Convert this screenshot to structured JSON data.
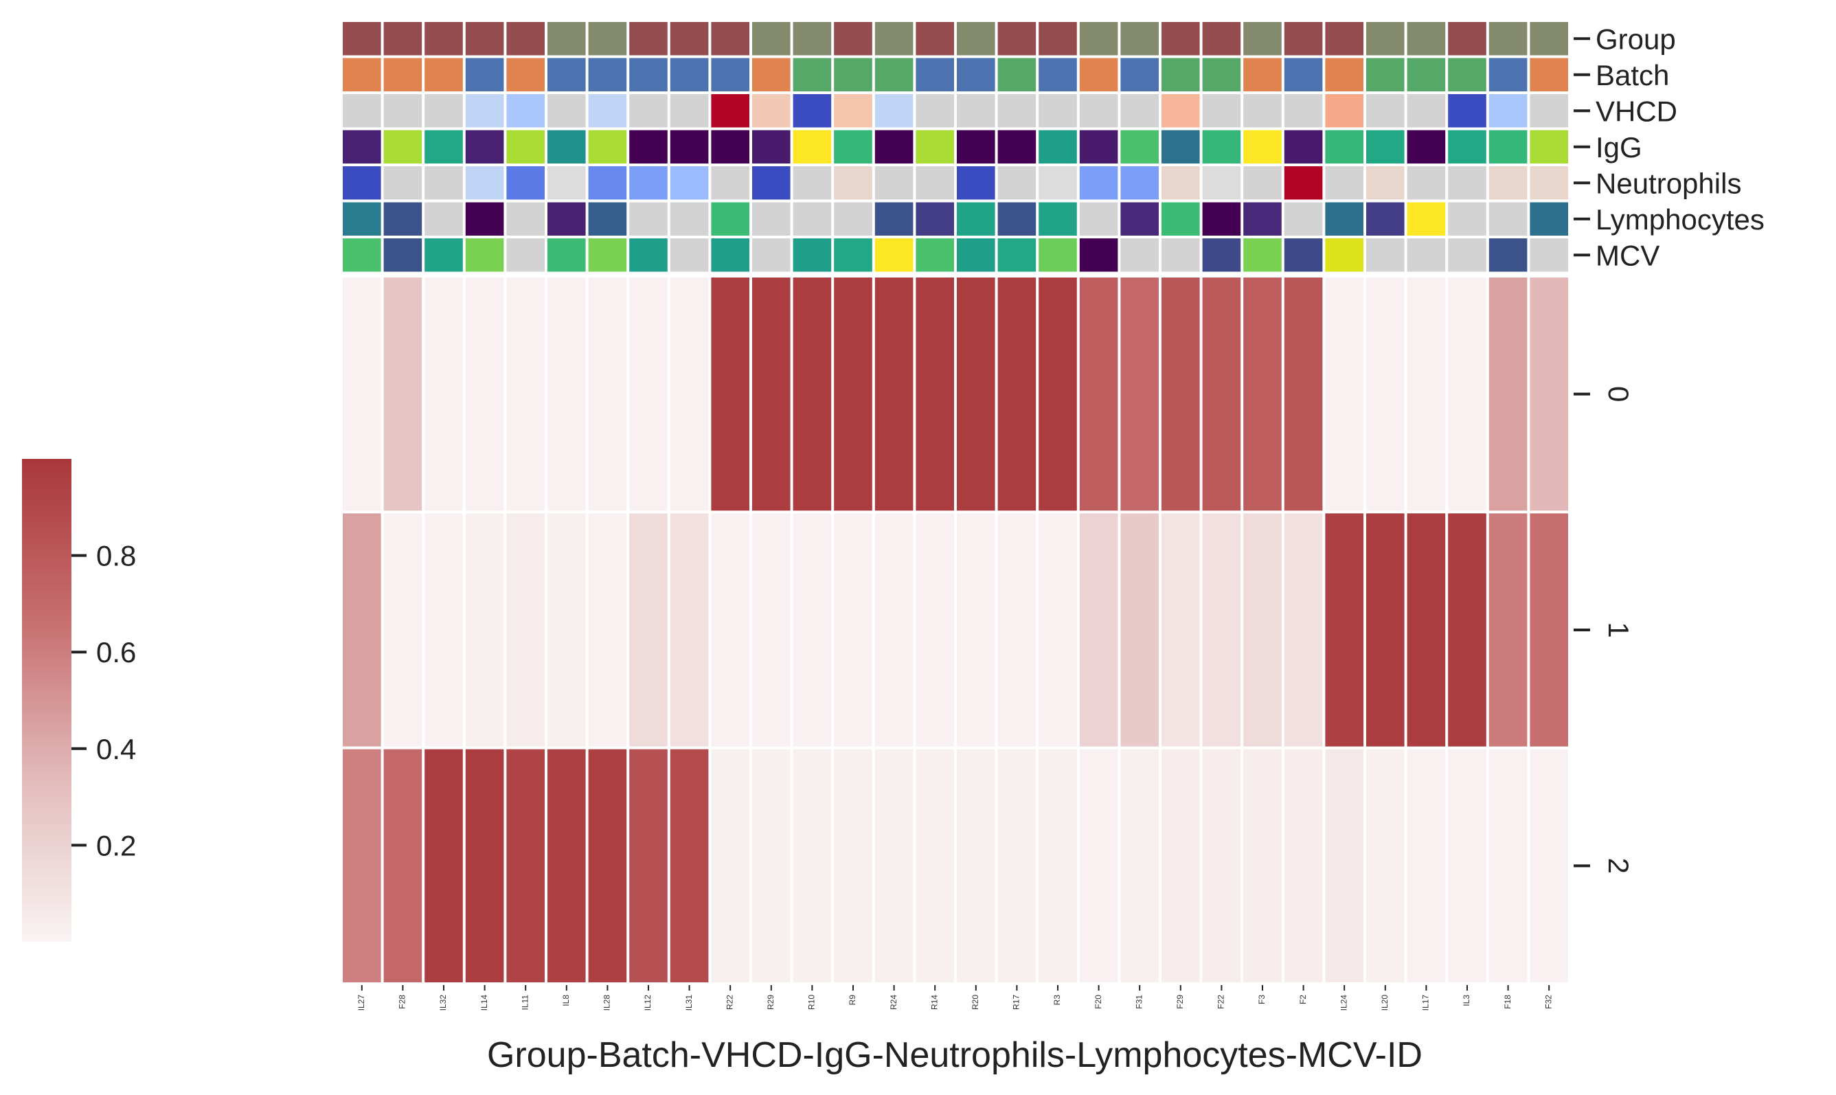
{
  "chart_data": {
    "type": "heatmap",
    "xlabel": "Group-Batch-VHCD-IgG-Neutrophils-Lymphocytes-MCV-ID",
    "ylabel": "",
    "columns": [
      "IL27",
      "F28",
      "IL32",
      "IL14",
      "IL11",
      "IL8",
      "IL28",
      "IL12",
      "IL31",
      "R22",
      "R29",
      "R10",
      "R9",
      "R24",
      "R14",
      "R20",
      "R17",
      "R3",
      "F20",
      "F31",
      "F29",
      "F22",
      "F3",
      "F2",
      "IL24",
      "IL20",
      "IL17",
      "IL3",
      "F18",
      "F32"
    ],
    "rows": [
      "0",
      "1",
      "2"
    ],
    "values": [
      [
        0.02,
        0.28,
        0.02,
        0.02,
        0.02,
        0.02,
        0.02,
        0.02,
        0.02,
        0.97,
        0.97,
        0.97,
        0.97,
        0.97,
        0.97,
        0.97,
        0.97,
        0.97,
        0.78,
        0.72,
        0.82,
        0.8,
        0.78,
        0.82,
        0.02,
        0.02,
        0.02,
        0.02,
        0.45,
        0.35
      ],
      [
        0.45,
        0.02,
        0.02,
        0.03,
        0.05,
        0.03,
        0.02,
        0.15,
        0.12,
        0.02,
        0.02,
        0.02,
        0.02,
        0.02,
        0.02,
        0.02,
        0.02,
        0.02,
        0.2,
        0.25,
        0.1,
        0.12,
        0.15,
        0.12,
        0.95,
        0.97,
        0.97,
        0.97,
        0.62,
        0.68
      ],
      [
        0.6,
        0.72,
        0.97,
        0.97,
        0.93,
        0.95,
        0.95,
        0.85,
        0.88,
        0.03,
        0.03,
        0.03,
        0.03,
        0.03,
        0.03,
        0.03,
        0.03,
        0.03,
        0.02,
        0.03,
        0.04,
        0.05,
        0.04,
        0.04,
        0.07,
        0.03,
        0.02,
        0.02,
        0.02,
        0.02
      ]
    ],
    "colorbar": {
      "colormap": [
        "#faf4f4",
        "#e3bcbc",
        "#c87070",
        "#a8373b"
      ],
      "range": [
        0,
        1
      ],
      "ticks": [
        0.2,
        0.4,
        0.6,
        0.8
      ],
      "tick_labels": [
        "0.2",
        "0.4",
        "0.6",
        "0.8"
      ],
      "placement": "left"
    },
    "annotation_rows": [
      {
        "name": "Group",
        "colors": [
          "#944c4e",
          "#944c4e",
          "#944c4e",
          "#944c4e",
          "#944c4e",
          "#848a6c",
          "#848a6c",
          "#944c4e",
          "#944c4e",
          "#944c4e",
          "#848a6c",
          "#848a6c",
          "#944c4e",
          "#848a6c",
          "#944c4e",
          "#848a6c",
          "#944c4e",
          "#944c4e",
          "#848a6c",
          "#848a6c",
          "#944c4e",
          "#944c4e",
          "#848a6c",
          "#944c4e",
          "#944c4e",
          "#848a6c",
          "#848a6c",
          "#944c4e",
          "#848a6c",
          "#848a6c"
        ]
      },
      {
        "name": "Batch",
        "colors": [
          "#e0834f",
          "#e0834f",
          "#e0834f",
          "#4c72b0",
          "#e0834f",
          "#4c72b0",
          "#4c72b0",
          "#4c72b0",
          "#4c72b0",
          "#4c72b0",
          "#e0834f",
          "#55a868",
          "#55a868",
          "#55a868",
          "#4c72b0",
          "#4c72b0",
          "#55a868",
          "#4c72b0",
          "#e0834f",
          "#4c72b0",
          "#55a868",
          "#55a868",
          "#e0834f",
          "#4c72b0",
          "#e0834f",
          "#55a868",
          "#55a868",
          "#55a868",
          "#4c72b0",
          "#e0834f"
        ]
      },
      {
        "name": "VHCD",
        "colors": [
          "#d3d3d3",
          "#d3d3d3",
          "#d3d3d3",
          "#c0d4f5",
          "#aac7fd",
          "#d3d3d3",
          "#c0d4f5",
          "#d3d3d3",
          "#d3d3d3",
          "#b40426",
          "#f2c9b4",
          "#3b4cc0",
          "#f5c4ac",
          "#c0d4f5",
          "#d3d3d3",
          "#d3d3d3",
          "#d3d3d3",
          "#d3d3d3",
          "#d3d3d3",
          "#d3d3d3",
          "#f7b599",
          "#d3d3d3",
          "#d3d3d3",
          "#d3d3d3",
          "#f7a889",
          "#d3d3d3",
          "#d3d3d3",
          "#3b4cc0",
          "#aac7fd",
          "#d3d3d3"
        ]
      },
      {
        "name": "IgG",
        "colors": [
          "#482173",
          "#a8db34",
          "#22a884",
          "#482173",
          "#a8db34",
          "#21918c",
          "#a8db34",
          "#440154",
          "#440154",
          "#440154",
          "#481b6d",
          "#fde725",
          "#35b779",
          "#440154",
          "#a8db34",
          "#440154",
          "#440154",
          "#1f9e89",
          "#481b6d",
          "#4ac16d",
          "#2c728e",
          "#35b779",
          "#fde725",
          "#481b6d",
          "#35b779",
          "#22a884",
          "#440154",
          "#22a884",
          "#35b779",
          "#a8db34"
        ]
      },
      {
        "name": "Neutrophils",
        "colors": [
          "#3b4cc0",
          "#d3d3d3",
          "#d3d3d3",
          "#c0d4f5",
          "#5b7ae5",
          "#dddcdc",
          "#6788ee",
          "#7b9ff9",
          "#9abbff",
          "#d3d3d3",
          "#3b4cc0",
          "#d3d3d3",
          "#e8d6cc",
          "#d3d3d3",
          "#d3d3d3",
          "#3b4cc0",
          "#d3d3d3",
          "#dddcdc",
          "#7b9ff9",
          "#7b9ff9",
          "#e8d6cc",
          "#dddcdc",
          "#d3d3d3",
          "#b40426",
          "#d3d3d3",
          "#e8d6cc",
          "#d3d3d3",
          "#d3d3d3",
          "#e8d6cc",
          "#e8d6cc"
        ]
      },
      {
        "name": "Lymphocytes",
        "colors": [
          "#287c8e",
          "#3b528b",
          "#d3d3d3",
          "#440154",
          "#d3d3d3",
          "#482173",
          "#355f8d",
          "#d3d3d3",
          "#d3d3d3",
          "#3cbb75",
          "#d3d3d3",
          "#d3d3d3",
          "#d3d3d3",
          "#3b528b",
          "#433e85",
          "#20a386",
          "#3b528b",
          "#20a386",
          "#d3d3d3",
          "#482878",
          "#3cbb75",
          "#440154",
          "#482878",
          "#d3d3d3",
          "#2d708e",
          "#433e85",
          "#fde725",
          "#d3d3d3",
          "#d3d3d3",
          "#2d708e"
        ]
      },
      {
        "name": "MCV",
        "colors": [
          "#4ac16d",
          "#3b528b",
          "#20a386",
          "#7ad151",
          "#d3d3d3",
          "#3cbb75",
          "#7ad151",
          "#1f9e89",
          "#d3d3d3",
          "#1f9e89",
          "#d3d3d3",
          "#1f9e89",
          "#22a884",
          "#fde725",
          "#4ac16d",
          "#1f9e89",
          "#22a884",
          "#6ccd5a",
          "#440154",
          "#d3d3d3",
          "#d3d3d3",
          "#3e4a89",
          "#7ad151",
          "#3e4a89",
          "#dde318",
          "#d3d3d3",
          "#d3d3d3",
          "#d3d3d3",
          "#3b528b",
          "#d3d3d3"
        ]
      }
    ]
  }
}
